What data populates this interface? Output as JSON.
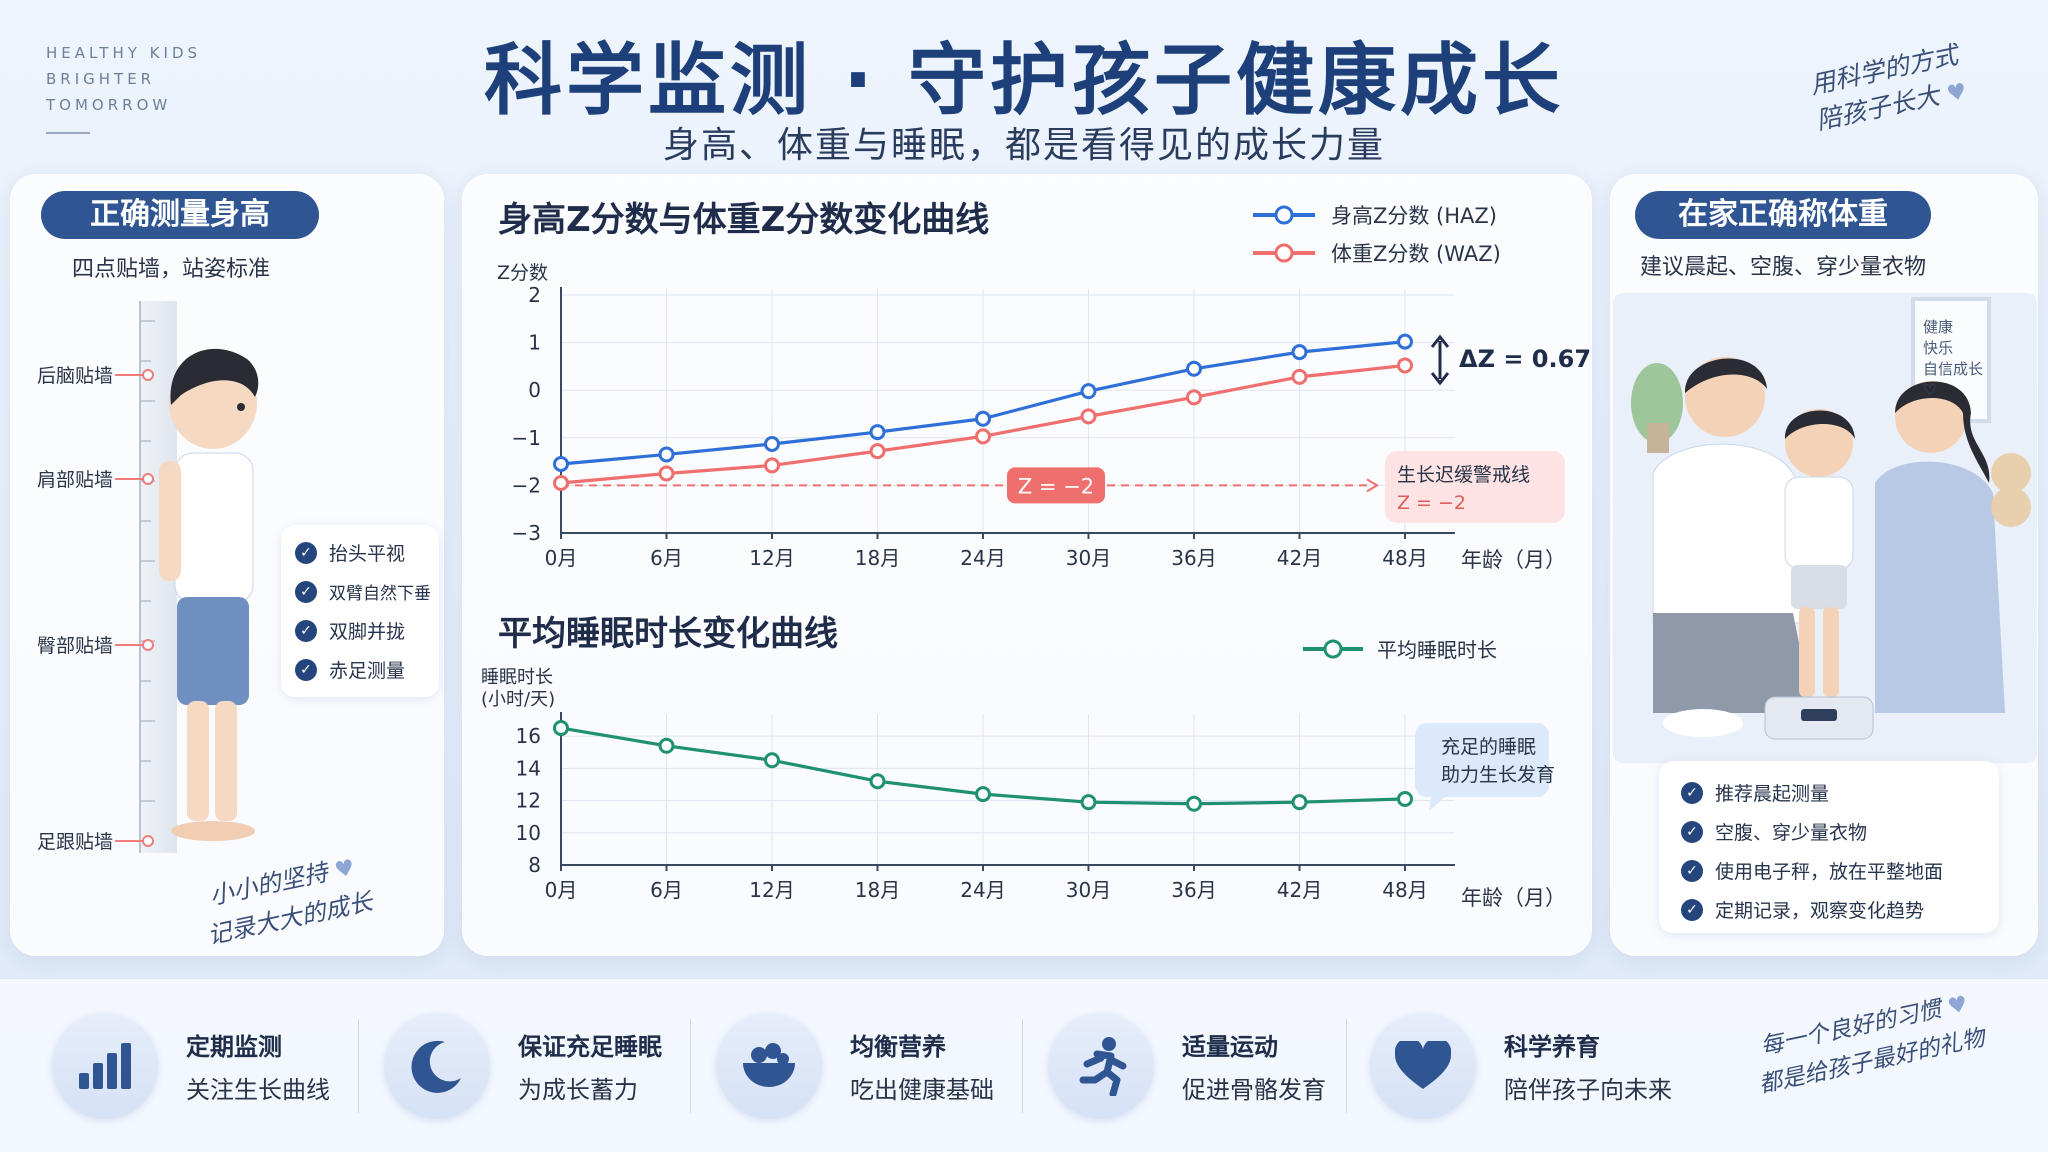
{
  "brand": {
    "lines": [
      "HEALTHY KIDS",
      "BRIGHTER",
      "TOMORROW"
    ]
  },
  "header": {
    "title": "科学监测 · 守护孩子健康成长",
    "subtitle": "身高、体重与睡眠，都是看得见的成长力量"
  },
  "top_right_quote": {
    "line1": "用科学的方式",
    "line2": "陪孩子长大"
  },
  "left_panel": {
    "title": "正确测量身高",
    "caption": "四点贴墙，站姿标准",
    "wall_labels": [
      "后脑贴墙",
      "肩部贴墙",
      "臀部贴墙",
      "足跟贴墙"
    ],
    "checks": [
      "抬头平视",
      "双臂自然下垂",
      "双脚并拢",
      "赤足测量"
    ],
    "quote1": "小小的坚持",
    "quote2": "记录大大的成长"
  },
  "right_panel": {
    "title": "在家正确称体重",
    "caption": "建议晨起、空腹、穿少量衣物",
    "frame_lines": [
      "健康",
      "快乐",
      "自信成长"
    ],
    "checks": [
      "推荐晨起测量",
      "空腹、穿少量衣物",
      "使用电子秤，放在平整地面",
      "定期记录，观察变化趋势"
    ]
  },
  "colors": {
    "haz": "#2e6fd8",
    "waz": "#ef6f6f",
    "sleep": "#1f9070",
    "threshold": "#ef6f6f"
  },
  "chart_data": [
    {
      "type": "line",
      "title": "身高Z分数与体重Z分数变化曲线",
      "ylabel": "Z分数",
      "xlabel": "年龄（月）",
      "categories": [
        "0月",
        "6月",
        "12月",
        "18月",
        "24月",
        "30月",
        "36月",
        "42月",
        "48月"
      ],
      "ylim": [
        -3,
        2
      ],
      "yticks": [
        "2",
        "1",
        "0",
        "−1",
        "−2",
        "−3"
      ],
      "series": [
        {
          "name": "身高Z分数 (HAZ)",
          "values": [
            -1.55,
            -1.35,
            -1.13,
            -0.88,
            -0.6,
            -0.02,
            0.45,
            0.8,
            1.02
          ]
        },
        {
          "name": "体重Z分数 (WAZ)",
          "values": [
            -1.95,
            -1.75,
            -1.58,
            -1.28,
            -0.97,
            -0.55,
            -0.15,
            0.28,
            0.52
          ]
        }
      ],
      "threshold": {
        "value": -2,
        "badge": "Z = −2",
        "note_line1": "生长迟缓警戒线",
        "note_line2": "Z = −2"
      },
      "delta_label": "ΔZ = 0.67",
      "legend_position": "top-right",
      "grid": true
    },
    {
      "type": "line",
      "title": "平均睡眠时长变化曲线",
      "ylabel_line1": "睡眠时长",
      "ylabel_line2": "(小时/天)",
      "xlabel": "年龄（月）",
      "categories": [
        "0月",
        "6月",
        "12月",
        "18月",
        "24月",
        "30月",
        "36月",
        "42月",
        "48月"
      ],
      "ylim": [
        8,
        17
      ],
      "yticks": [
        "16",
        "14",
        "12",
        "10",
        "8"
      ],
      "series": [
        {
          "name": "平均睡眠时长",
          "values": [
            16.5,
            15.4,
            14.5,
            13.2,
            12.4,
            11.9,
            11.8,
            11.9,
            12.1
          ]
        }
      ],
      "callout_line1": "充足的睡眠",
      "callout_line2": "助力生长发育",
      "legend_position": "top-right",
      "grid": true
    }
  ],
  "bottom": {
    "items": [
      {
        "title": "定期监测",
        "sub": "关注生长曲线",
        "icon": "bar-chart-icon"
      },
      {
        "title": "保证充足睡眠",
        "sub": "为成长蓄力",
        "icon": "moon-icon"
      },
      {
        "title": "均衡营养",
        "sub": "吃出健康基础",
        "icon": "food-bowl-icon"
      },
      {
        "title": "适量运动",
        "sub": "促进骨骼发育",
        "icon": "running-icon"
      },
      {
        "title": "科学养育",
        "sub": "陪伴孩子向未来",
        "icon": "heart-icon"
      }
    ],
    "quote1": "每一个良好的习惯",
    "quote2": "都是给孩子最好的礼物"
  }
}
